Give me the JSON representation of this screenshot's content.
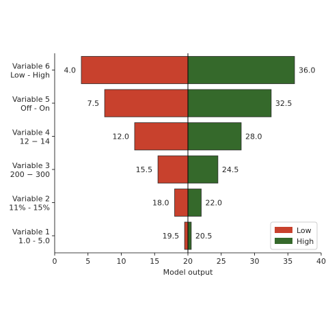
{
  "chart_data": {
    "type": "bar",
    "orientation": "horizontal",
    "style": "tornado",
    "baseline": 20,
    "categories": [
      [
        "Variable 1",
        "1.0 - 5.0"
      ],
      [
        "Variable 2",
        "11% - 15%"
      ],
      [
        "Variable 3",
        "200 − 300"
      ],
      [
        "Variable 4",
        "12 − 14"
      ],
      [
        "Variable 5",
        "Off - On"
      ],
      [
        "Variable 6",
        "Low - High"
      ]
    ],
    "series": [
      {
        "name": "Low",
        "color": "#c8412d",
        "values": [
          19.5,
          18.0,
          15.5,
          12.0,
          7.5,
          4.0
        ]
      },
      {
        "name": "High",
        "color": "#35692b",
        "values": [
          20.5,
          22.0,
          24.5,
          28.0,
          32.5,
          36.0
        ]
      }
    ],
    "data_labels": {
      "Low": [
        "19.5",
        "18.0",
        "15.5",
        "12.0",
        "7.5",
        "4.0"
      ],
      "High": [
        "20.5",
        "22.0",
        "24.5",
        "28.0",
        "32.5",
        "36.0"
      ]
    },
    "xlabel": "Model output",
    "ylabel": "",
    "title": "",
    "xlim": [
      0,
      40
    ],
    "xticks": [
      0,
      5,
      10,
      15,
      20,
      25,
      30,
      35,
      40
    ],
    "grid": false,
    "legend_position": "bottom-right"
  }
}
